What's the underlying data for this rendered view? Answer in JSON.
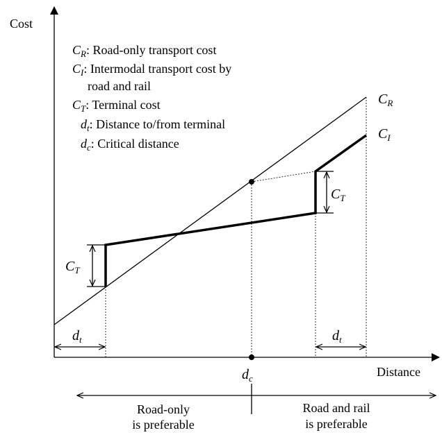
{
  "axes": {
    "y_label": "Cost",
    "x_label": "Distance"
  },
  "legend": [
    {
      "symbol": "C",
      "sub": "R",
      "lines": [
        ": Road-only transport cost"
      ]
    },
    {
      "symbol": "C",
      "sub": "I",
      "lines": [
        ": Intermodal transport cost by",
        "road and rail"
      ]
    },
    {
      "symbol": "C",
      "sub": "T",
      "lines": [
        ": Terminal cost"
      ]
    },
    {
      "symbol": "d",
      "sub": "t",
      "lines": [
        ": Distance to/from terminal"
      ]
    },
    {
      "symbol": "d",
      "sub": "c",
      "lines": [
        ": Critical distance"
      ]
    }
  ],
  "line_labels": {
    "road": {
      "symbol": "C",
      "sub": "R"
    },
    "intermodal": {
      "symbol": "C",
      "sub": "I"
    }
  },
  "terminal_cost_labels": [
    {
      "symbol": "C",
      "sub": "T"
    },
    {
      "symbol": "C",
      "sub": "T"
    }
  ],
  "terminal_distance_labels": [
    {
      "symbol": "d",
      "sub": "t"
    },
    {
      "symbol": "d",
      "sub": "t"
    }
  ],
  "critical_distance": {
    "symbol": "d",
    "sub": "c"
  },
  "regions": {
    "left": [
      "Road-only",
      "is preferable"
    ],
    "right": [
      "Road and rail",
      "is preferable"
    ]
  }
}
